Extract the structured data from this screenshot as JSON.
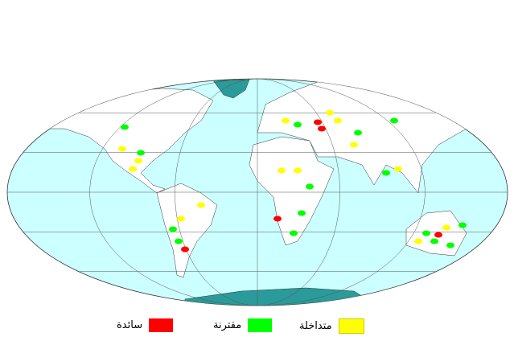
{
  "colors": {
    "ocean": "#ccffff",
    "land": "#ffffff",
    "ice": "#2b9a9a",
    "grid": "#555555"
  },
  "legend": [
    {
      "label": "سائدة",
      "color": "#ff0000"
    },
    {
      "label": "مقترنة",
      "color": "#00ff00"
    },
    {
      "label": "متداخلة",
      "color": "#ffff00"
    }
  ]
}
